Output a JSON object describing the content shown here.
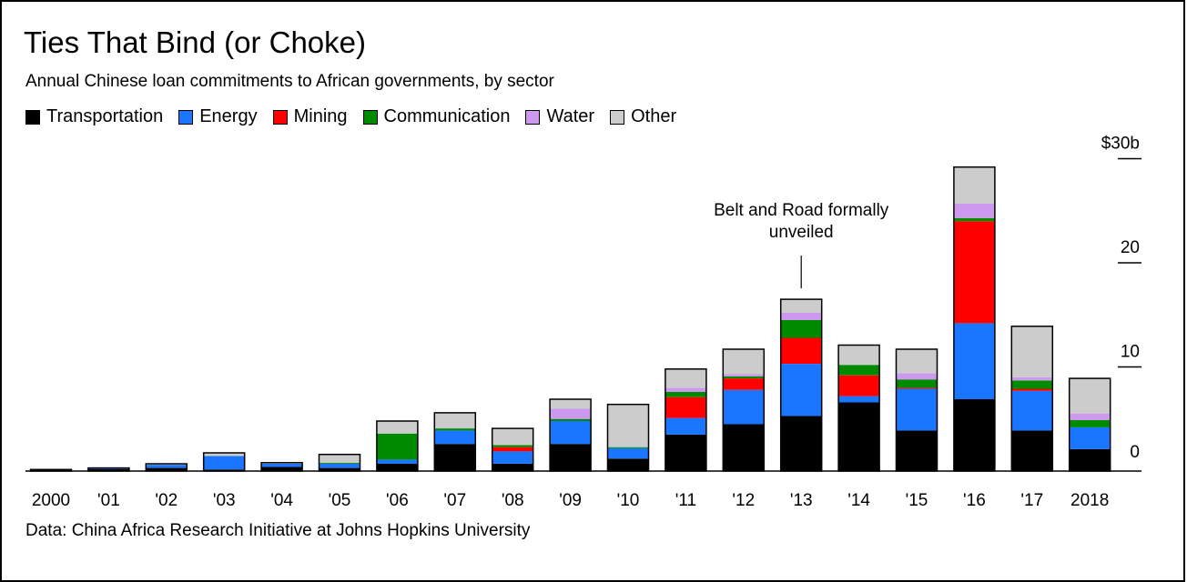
{
  "chart_data": {
    "type": "bar",
    "stacked": true,
    "title": "Ties That Bind (or Choke)",
    "subtitle": "Annual Chinese loan commitments to African governments, by sector",
    "source": "Data: China Africa Research Initiative at Johns Hopkins University",
    "categories": [
      "2000",
      "'01",
      "'02",
      "'03",
      "'04",
      "'05",
      "'06",
      "'07",
      "'08",
      "'09",
      "'10",
      "'11",
      "'12",
      "'13",
      "'14",
      "'15",
      "'16",
      "'17",
      "2018"
    ],
    "y_ticks": [
      {
        "value": 0,
        "label": "0"
      },
      {
        "value": 10,
        "label": "10"
      },
      {
        "value": 20,
        "label": "20"
      },
      {
        "value": 30,
        "label": "$30b"
      }
    ],
    "ylim": [
      0,
      30
    ],
    "series": [
      {
        "name": "Transportation",
        "color": "#000000",
        "values": [
          0.15,
          0.2,
          0.3,
          0.15,
          0.4,
          0.3,
          0.7,
          2.6,
          0.7,
          2.6,
          1.2,
          3.5,
          4.5,
          5.3,
          6.6,
          3.9,
          6.9,
          3.9,
          2.1
        ]
      },
      {
        "name": "Energy",
        "color": "#1a75ff",
        "values": [
          0.0,
          0.1,
          0.3,
          1.3,
          0.3,
          0.4,
          0.4,
          1.3,
          1.2,
          2.2,
          1.0,
          1.6,
          3.3,
          5.0,
          0.6,
          4.0,
          7.3,
          3.8,
          2.1
        ]
      },
      {
        "name": "Mining",
        "color": "#ff0000",
        "values": [
          0,
          0,
          0,
          0,
          0,
          0,
          0,
          0,
          0.4,
          0,
          0,
          2.0,
          1.1,
          2.5,
          2.0,
          0.1,
          9.8,
          0.2,
          0
        ]
      },
      {
        "name": "Communication",
        "color": "#008a00",
        "values": [
          0,
          0,
          0,
          0,
          0,
          0.1,
          2.5,
          0.2,
          0.2,
          0.2,
          0.1,
          0.5,
          0.2,
          1.7,
          1.0,
          0.8,
          0.3,
          0.8,
          0.7
        ]
      },
      {
        "name": "Water",
        "color": "#cc99ee",
        "values": [
          0,
          0,
          0,
          0,
          0,
          0,
          0,
          0,
          0,
          1.0,
          0,
          0.4,
          0.2,
          0.7,
          0,
          0.6,
          1.4,
          0.3,
          0.6
        ]
      },
      {
        "name": "Other",
        "color": "#cccccc",
        "values": [
          0,
          0,
          0.1,
          0.3,
          0.1,
          0.8,
          1.2,
          1.5,
          1.6,
          0.9,
          4.1,
          1.8,
          2.4,
          1.3,
          1.9,
          2.3,
          3.5,
          4.9,
          3.4
        ]
      }
    ],
    "annotation": {
      "category": "'13",
      "lines": [
        "Belt and Road formally",
        "unveiled"
      ]
    }
  }
}
